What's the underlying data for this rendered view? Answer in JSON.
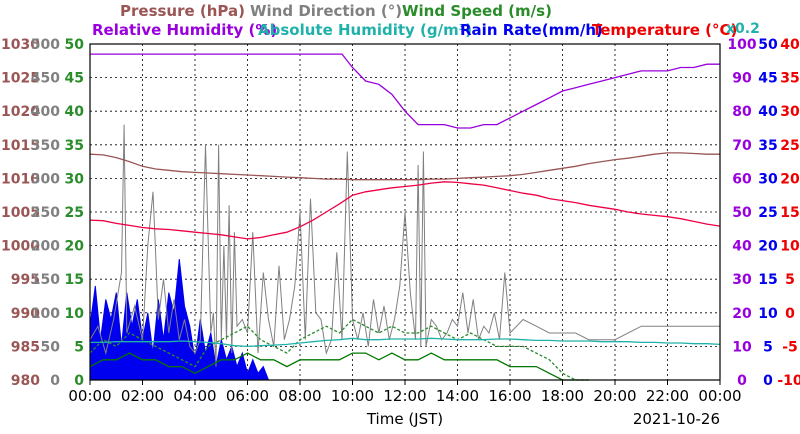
{
  "chart_data": {
    "type": "line",
    "date": "2021-10-26",
    "xlabel": "Time (JST)",
    "x_ticks": [
      "00:00",
      "02:00",
      "04:00",
      "06:00",
      "08:00",
      "10:00",
      "12:00",
      "14:00",
      "16:00",
      "18:00",
      "20:00",
      "22:00",
      "00:00"
    ],
    "grid": true,
    "legend": {
      "pressure": "Pressure (hPa)",
      "wind_direction": "Wind Direction (°)",
      "wind_speed": "Wind Speed (m/s)",
      "relative_humidity": "Relative Humidity (%)",
      "absolute_humidity": "Absolute Humidity (g/m³)",
      "rain_rate": "Rain Rate(mm/h)",
      "temperature": "Temperature (°C)",
      "absolute_humidity_scale_note": "x0.2"
    },
    "axes": {
      "pressure": {
        "color": "#9a5555",
        "ticks": [
          "1030",
          "1025",
          "1020",
          "1015",
          "1010",
          "1005",
          "1000",
          "995",
          "990",
          "985",
          "980"
        ],
        "ylim": [
          980,
          1030
        ]
      },
      "wind_direction": {
        "color": "#808080",
        "ticks": [
          "500",
          "450",
          "400",
          "350",
          "300",
          "250",
          "200",
          "150",
          "100",
          "50",
          "0"
        ],
        "ylim": [
          0,
          500
        ]
      },
      "wind_speed": {
        "color": "#2a8c2a",
        "ticks": [
          "50",
          "45",
          "40",
          "35",
          "30",
          "25",
          "20",
          "15",
          "10",
          "5",
          "0"
        ],
        "ylim": [
          0,
          50
        ]
      },
      "relative_humidity": {
        "color": "#9900dd",
        "ticks": [
          "100",
          "90",
          "80",
          "70",
          "60",
          "50",
          "40",
          "30",
          "20",
          "10",
          "0"
        ],
        "ylim": [
          0,
          100
        ]
      },
      "rain_rate": {
        "color": "#0000ee",
        "ticks": [
          "50",
          "45",
          "40",
          "35",
          "30",
          "25",
          "20",
          "15",
          "10",
          "5",
          "0"
        ],
        "ylim": [
          0,
          50
        ]
      },
      "temperature": {
        "color": "#ee0000",
        "ticks": [
          "40",
          "35",
          "30",
          "25",
          "20",
          "15",
          "10",
          "5",
          "0",
          "-5",
          "-10"
        ],
        "ylim": [
          -10,
          40
        ]
      }
    },
    "series": [
      {
        "key": "relative_humidity",
        "color": "#9900dd",
        "axis": "relative_humidity",
        "x": [
          0,
          1,
          2,
          3,
          4,
          5,
          6,
          7,
          8,
          9,
          9.6,
          10,
          10.5,
          11,
          11.5,
          12,
          12.5,
          13,
          13.5,
          14,
          14.5,
          15,
          15.5,
          16,
          16.5,
          17,
          17.5,
          18,
          18.5,
          19,
          19.5,
          20,
          20.5,
          21,
          21.5,
          22,
          22.5,
          23,
          23.5,
          24
        ],
        "y": [
          97,
          97,
          97,
          97,
          97,
          97,
          97,
          97,
          97,
          97,
          97,
          93,
          89,
          88,
          85,
          80,
          76,
          76,
          76,
          75,
          75,
          76,
          76,
          78,
          80,
          82,
          84,
          86,
          87,
          88,
          89,
          90,
          91,
          92,
          92,
          92,
          93,
          93,
          94,
          94
        ]
      },
      {
        "key": "pressure",
        "color": "#9a5555",
        "axis": "pressure",
        "x": [
          0,
          0.5,
          1,
          1.5,
          2,
          2.5,
          3,
          3.5,
          4,
          4.5,
          5,
          5.5,
          6,
          6.5,
          7,
          7.5,
          8,
          8.5,
          9,
          9.5,
          10,
          10.5,
          11,
          11.5,
          12,
          12.5,
          13,
          13.5,
          14,
          14.5,
          15,
          15.5,
          16,
          16.5,
          17,
          17.5,
          18,
          18.5,
          19,
          19.5,
          20,
          20.5,
          21,
          21.5,
          22,
          22.5,
          23,
          23.5,
          24
        ],
        "y": [
          1013.6,
          1013.5,
          1013.1,
          1012.5,
          1011.8,
          1011.4,
          1011.2,
          1011.0,
          1010.9,
          1010.8,
          1010.7,
          1010.6,
          1010.5,
          1010.4,
          1010.3,
          1010.2,
          1010.1,
          1010.0,
          1009.9,
          1009.9,
          1009.8,
          1009.8,
          1009.8,
          1009.8,
          1009.8,
          1009.8,
          1009.9,
          1009.9,
          1010.0,
          1010.1,
          1010.2,
          1010.3,
          1010.4,
          1010.6,
          1010.9,
          1011.2,
          1011.5,
          1011.8,
          1012.2,
          1012.5,
          1012.8,
          1013.0,
          1013.3,
          1013.6,
          1013.8,
          1013.8,
          1013.7,
          1013.6,
          1013.6
        ]
      },
      {
        "key": "absolute_humidity",
        "color": "#20b2aa",
        "axis": "relative_humidity",
        "scale": 0.2,
        "x": [
          0,
          0.5,
          1,
          1.5,
          2,
          2.5,
          3,
          3.5,
          4,
          4.5,
          5,
          5.5,
          6,
          6.5,
          7,
          7.5,
          8,
          8.5,
          9,
          9.5,
          10,
          10.5,
          11,
          11.5,
          12,
          12.5,
          13,
          13.5,
          14,
          14.5,
          15,
          15.5,
          16,
          16.5,
          17,
          17.5,
          18,
          18.5,
          19,
          19.5,
          20,
          20.5,
          21,
          21.5,
          22,
          22.5,
          23,
          23.5,
          24
        ],
        "y": [
          56,
          56,
          57,
          57,
          57,
          57,
          57,
          58,
          57,
          56,
          54,
          51,
          50,
          51,
          52,
          53,
          55,
          57,
          59,
          60,
          62,
          60,
          60,
          61,
          61,
          61,
          62,
          61,
          60,
          60,
          60,
          61,
          61,
          60,
          59,
          59,
          58,
          58,
          58,
          57,
          57,
          57,
          56,
          56,
          55,
          55,
          54,
          54,
          53
        ]
      },
      {
        "key": "temperature",
        "color": "#ee0044",
        "axis": "temperature",
        "x": [
          0,
          0.5,
          1,
          1.5,
          2,
          2.5,
          3,
          3.5,
          4,
          4.5,
          5,
          5.5,
          6,
          6.5,
          7,
          7.5,
          8,
          8.5,
          9,
          9.5,
          10,
          10.5,
          11,
          11.5,
          12,
          12.5,
          13,
          13.5,
          14,
          14.5,
          15,
          15.5,
          16,
          16.5,
          17,
          17.5,
          18,
          18.5,
          19,
          19.5,
          20,
          20.5,
          21,
          21.5,
          22,
          22.5,
          23,
          23.5,
          24
        ],
        "y": [
          13.8,
          13.7,
          13.3,
          13.0,
          12.7,
          12.5,
          12.4,
          12.2,
          12.0,
          11.8,
          11.6,
          11.3,
          11.0,
          11.2,
          11.6,
          12.0,
          12.8,
          13.8,
          15.0,
          16.2,
          17.5,
          18.0,
          18.3,
          18.6,
          18.8,
          19.0,
          19.3,
          19.5,
          19.4,
          19.2,
          19.0,
          18.6,
          18.2,
          17.8,
          17.5,
          17.0,
          16.7,
          16.4,
          16.0,
          15.7,
          15.4,
          15.0,
          14.7,
          14.5,
          14.3,
          14.0,
          13.6,
          13.2,
          12.9
        ]
      },
      {
        "key": "wind_speed_max",
        "color": "#2a8c2a",
        "axis": "wind_speed",
        "dashed": true,
        "x": [
          0,
          0.5,
          1,
          1.5,
          2,
          2.5,
          3,
          3.5,
          4,
          4.5,
          5,
          5.5,
          6,
          6.5,
          7,
          7.5,
          8,
          8.5,
          9,
          9.5,
          10,
          10.5,
          11,
          11.5,
          12,
          12.5,
          13,
          13.5,
          14,
          14.5,
          15,
          15.5,
          16,
          16.5,
          17,
          17.5,
          18,
          18.5,
          19
        ],
        "y": [
          4,
          6,
          5,
          7,
          6,
          5,
          4,
          3,
          2,
          5,
          6,
          7,
          8,
          6,
          5,
          4,
          6,
          7,
          8,
          7,
          9,
          8,
          7,
          8,
          7,
          7,
          8,
          7,
          6,
          7,
          6,
          5,
          5,
          5,
          4,
          3,
          1,
          0,
          0
        ]
      },
      {
        "key": "wind_speed_avg",
        "color": "#007700",
        "axis": "wind_speed",
        "x": [
          0,
          0.5,
          1,
          1.5,
          2,
          2.5,
          3,
          3.5,
          4,
          4.5,
          5,
          5.5,
          6,
          6.5,
          7,
          7.5,
          8,
          8.5,
          9,
          9.5,
          10,
          10.5,
          11,
          11.5,
          12,
          12.5,
          13,
          13.5,
          14,
          14.5,
          15,
          15.5,
          16,
          16.5,
          17,
          17.5,
          18,
          18.5,
          19
        ],
        "y": [
          2,
          3,
          3,
          4,
          3,
          3,
          2,
          2,
          1,
          2,
          3,
          3,
          4,
          3,
          3,
          2,
          3,
          3,
          3,
          3,
          4,
          4,
          3,
          4,
          3,
          3,
          4,
          3,
          3,
          3,
          3,
          3,
          2,
          2,
          2,
          1,
          0,
          0,
          0
        ]
      },
      {
        "key": "wind_direction",
        "color": "#808080",
        "axis": "wind_direction",
        "x": [
          0,
          0.3,
          0.6,
          0.9,
          1.2,
          1.3,
          1.4,
          1.7,
          2.0,
          2.2,
          2.4,
          2.5,
          2.6,
          2.8,
          3.0,
          3.2,
          3.4,
          3.6,
          3.8,
          4.0,
          4.2,
          4.4,
          4.6,
          4.7,
          4.8,
          4.9,
          5.0,
          5.1,
          5.2,
          5.3,
          5.4,
          5.5,
          5.6,
          5.8,
          6.0,
          6.2,
          6.4,
          6.6,
          6.8,
          7.0,
          7.2,
          7.4,
          7.6,
          7.8,
          8.0,
          8.2,
          8.4,
          8.6,
          8.8,
          9.0,
          9.2,
          9.4,
          9.6,
          9.8,
          10.0,
          10.2,
          10.4,
          10.6,
          10.8,
          11.0,
          11.2,
          11.4,
          11.6,
          11.8,
          12.0,
          12.2,
          12.4,
          12.5,
          12.6,
          12.7,
          12.8,
          13.0,
          13.2,
          13.4,
          13.6,
          13.8,
          14.0,
          14.2,
          14.4,
          14.6,
          14.8,
          15.0,
          15.2,
          15.4,
          15.6,
          15.8,
          16.0,
          16.5,
          17.0,
          17.5,
          18.0,
          18.5,
          19.0,
          19.5,
          20.0,
          21.0,
          22.0,
          23.0,
          24.0
        ],
        "y": [
          60,
          80,
          40,
          90,
          160,
          380,
          70,
          110,
          60,
          200,
          280,
          190,
          90,
          150,
          70,
          120,
          60,
          90,
          50,
          40,
          60,
          350,
          70,
          100,
          20,
          350,
          60,
          200,
          60,
          260,
          40,
          220,
          80,
          90,
          70,
          220,
          40,
          160,
          90,
          50,
          170,
          60,
          90,
          140,
          250,
          60,
          270,
          100,
          90,
          40,
          60,
          190,
          60,
          340,
          90,
          60,
          100,
          50,
          120,
          70,
          110,
          60,
          90,
          140,
          250,
          130,
          60,
          320,
          50,
          340,
          50,
          90,
          80,
          60,
          70,
          90,
          80,
          130,
          70,
          120,
          60,
          80,
          70,
          100,
          60,
          160,
          70,
          90,
          80,
          70,
          70,
          70,
          60,
          60,
          60,
          80,
          80,
          80,
          80
        ]
      },
      {
        "key": "rain_rate",
        "color": "#0000ee",
        "axis": "rain_rate",
        "fill": true,
        "x": [
          0,
          0.2,
          0.4,
          0.6,
          0.8,
          1.0,
          1.2,
          1.4,
          1.6,
          1.8,
          2.0,
          2.2,
          2.4,
          2.6,
          2.8,
          3.0,
          3.2,
          3.4,
          3.6,
          3.8,
          4.0,
          4.2,
          4.4,
          4.6,
          4.8,
          5.0,
          5.2,
          5.4,
          5.6,
          5.8,
          6.0,
          6.2,
          6.4,
          6.6,
          6.8,
          7.0
        ],
        "y": [
          8,
          14,
          6,
          12,
          9,
          13,
          5,
          13,
          8,
          12,
          6,
          10,
          4,
          12,
          6,
          13,
          10,
          18,
          11,
          8,
          3,
          9,
          4,
          7,
          2,
          6,
          3,
          5,
          2,
          4,
          1,
          3,
          1,
          2,
          0,
          0
        ]
      }
    ]
  }
}
